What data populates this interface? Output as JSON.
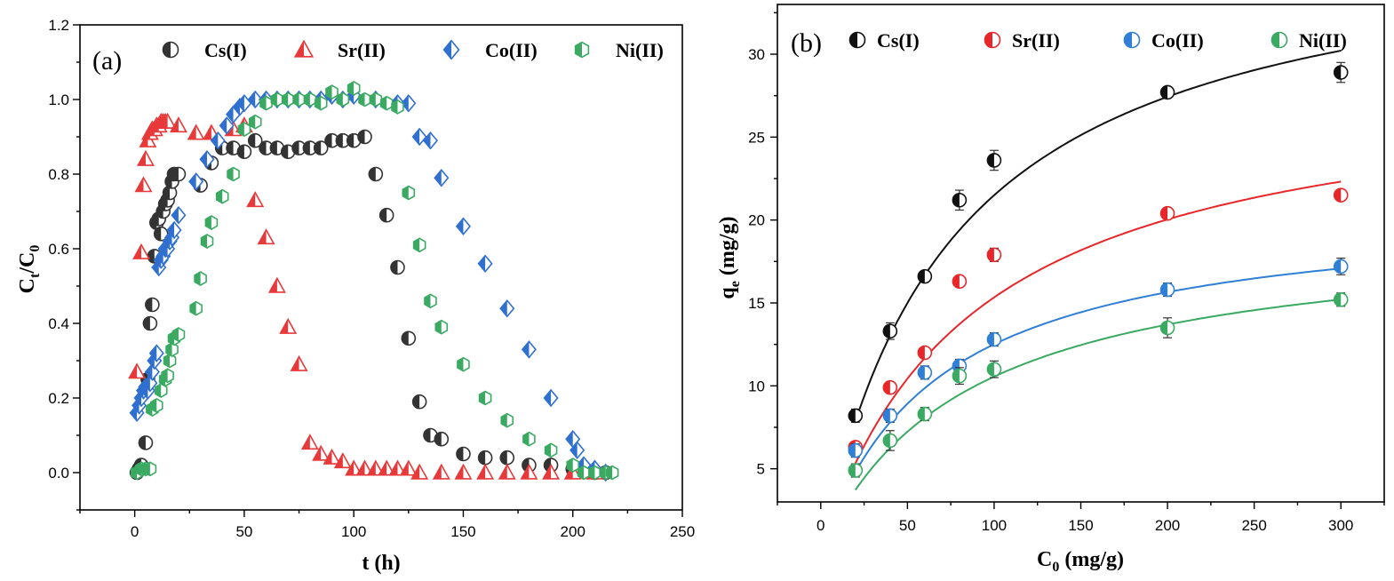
{
  "chart_data": [
    {
      "type": "scatter",
      "panel_label": "(a)",
      "xlabel": "t (h)",
      "ylabel_main": "C",
      "ylabel_sub_t": "t",
      "ylabel_slash": "/C",
      "ylabel_sub_0": "0",
      "xlim": [
        -25,
        250
      ],
      "ylim": [
        -0.1,
        1.2
      ],
      "xticks": [
        0,
        50,
        100,
        150,
        200,
        250
      ],
      "xtick_labels": [
        "0",
        "50",
        "100",
        "150",
        "200",
        "250"
      ],
      "yticks": [
        0.0,
        0.2,
        0.4,
        0.6,
        0.8,
        1.0,
        1.2
      ],
      "ytick_labels": [
        "0.0",
        "0.2",
        "0.4",
        "0.6",
        "0.8",
        "1.0",
        "1.2"
      ],
      "legend_position": "top",
      "series": [
        {
          "name": "Cs(I)",
          "color": "#333333",
          "marker": "circle-half",
          "points": [
            [
              1,
              0.0
            ],
            [
              2,
              0.01
            ],
            [
              3,
              0.02
            ],
            [
              5,
              0.08
            ],
            [
              6,
              0.25
            ],
            [
              7,
              0.4
            ],
            [
              8,
              0.45
            ],
            [
              9,
              0.58
            ],
            [
              10,
              0.67
            ],
            [
              11,
              0.68
            ],
            [
              12,
              0.64
            ],
            [
              13,
              0.7
            ],
            [
              14,
              0.72
            ],
            [
              15,
              0.73
            ],
            [
              16,
              0.75
            ],
            [
              17,
              0.78
            ],
            [
              18,
              0.8
            ],
            [
              20,
              0.8
            ],
            [
              30,
              0.77
            ],
            [
              35,
              0.83
            ],
            [
              40,
              0.87
            ],
            [
              45,
              0.87
            ],
            [
              50,
              0.86
            ],
            [
              55,
              0.89
            ],
            [
              60,
              0.87
            ],
            [
              65,
              0.87
            ],
            [
              70,
              0.86
            ],
            [
              75,
              0.87
            ],
            [
              80,
              0.87
            ],
            [
              85,
              0.87
            ],
            [
              90,
              0.89
            ],
            [
              95,
              0.89
            ],
            [
              100,
              0.89
            ],
            [
              105,
              0.9
            ],
            [
              110,
              0.8
            ],
            [
              115,
              0.69
            ],
            [
              120,
              0.55
            ],
            [
              125,
              0.36
            ],
            [
              130,
              0.19
            ],
            [
              135,
              0.1
            ],
            [
              140,
              0.09
            ],
            [
              150,
              0.05
            ],
            [
              160,
              0.04
            ],
            [
              170,
              0.04
            ],
            [
              180,
              0.02
            ],
            [
              190,
              0.02
            ],
            [
              200,
              0.01
            ],
            [
              210,
              0.0
            ],
            [
              215,
              0.0
            ]
          ]
        },
        {
          "name": "Sr(II)",
          "color": "#e8393a",
          "marker": "triangle-half",
          "points": [
            [
              1,
              0.27
            ],
            [
              3,
              0.59
            ],
            [
              4,
              0.77
            ],
            [
              5,
              0.84
            ],
            [
              6,
              0.89
            ],
            [
              7,
              0.91
            ],
            [
              8,
              0.92
            ],
            [
              9,
              0.92
            ],
            [
              10,
              0.93
            ],
            [
              11,
              0.93
            ],
            [
              12,
              0.94
            ],
            [
              13,
              0.94
            ],
            [
              14,
              0.94
            ],
            [
              15,
              0.94
            ],
            [
              20,
              0.93
            ],
            [
              28,
              0.91
            ],
            [
              35,
              0.91
            ],
            [
              45,
              0.92
            ],
            [
              50,
              0.93
            ],
            [
              55,
              0.73
            ],
            [
              60,
              0.63
            ],
            [
              65,
              0.5
            ],
            [
              70,
              0.39
            ],
            [
              75,
              0.29
            ],
            [
              80,
              0.08
            ],
            [
              85,
              0.05
            ],
            [
              90,
              0.04
            ],
            [
              95,
              0.03
            ],
            [
              100,
              0.01
            ],
            [
              105,
              0.01
            ],
            [
              110,
              0.01
            ],
            [
              115,
              0.01
            ],
            [
              120,
              0.01
            ],
            [
              125,
              0.01
            ],
            [
              130,
              0.0
            ],
            [
              140,
              0.0
            ],
            [
              150,
              0.0
            ],
            [
              160,
              0.0
            ],
            [
              170,
              0.0
            ],
            [
              180,
              0.0
            ],
            [
              190,
              0.0
            ],
            [
              200,
              0.0
            ],
            [
              210,
              0.0
            ]
          ]
        },
        {
          "name": "Co(II)",
          "color": "#2f6fd0",
          "marker": "diamond-half",
          "points": [
            [
              1,
              0.16
            ],
            [
              2,
              0.18
            ],
            [
              3,
              0.2
            ],
            [
              4,
              0.22
            ],
            [
              5,
              0.23
            ],
            [
              6,
              0.22
            ],
            [
              7,
              0.24
            ],
            [
              8,
              0.27
            ],
            [
              9,
              0.3
            ],
            [
              10,
              0.32
            ],
            [
              11,
              0.55
            ],
            [
              12,
              0.57
            ],
            [
              13,
              0.58
            ],
            [
              14,
              0.6
            ],
            [
              15,
              0.6
            ],
            [
              16,
              0.62
            ],
            [
              17,
              0.63
            ],
            [
              18,
              0.65
            ],
            [
              20,
              0.69
            ],
            [
              28,
              0.78
            ],
            [
              33,
              0.84
            ],
            [
              38,
              0.89
            ],
            [
              42,
              0.93
            ],
            [
              45,
              0.96
            ],
            [
              48,
              0.98
            ],
            [
              50,
              0.99
            ],
            [
              55,
              1.0
            ],
            [
              60,
              1.0
            ],
            [
              65,
              1.0
            ],
            [
              70,
              1.0
            ],
            [
              75,
              1.0
            ],
            [
              80,
              1.0
            ],
            [
              85,
              1.0
            ],
            [
              90,
              1.01
            ],
            [
              95,
              1.0
            ],
            [
              100,
              1.01
            ],
            [
              110,
              1.0
            ],
            [
              120,
              0.99
            ],
            [
              125,
              0.99
            ],
            [
              130,
              0.9
            ],
            [
              135,
              0.89
            ],
            [
              140,
              0.79
            ],
            [
              150,
              0.66
            ],
            [
              160,
              0.56
            ],
            [
              170,
              0.44
            ],
            [
              180,
              0.33
            ],
            [
              190,
              0.2
            ],
            [
              200,
              0.09
            ],
            [
              202,
              0.06
            ],
            [
              205,
              0.02
            ],
            [
              210,
              0.01
            ],
            [
              215,
              0.0
            ]
          ]
        },
        {
          "name": "Ni(II)",
          "color": "#3aaa62",
          "marker": "hexagon-half",
          "points": [
            [
              1,
              0.0
            ],
            [
              3,
              0.01
            ],
            [
              5,
              0.01
            ],
            [
              7,
              0.01
            ],
            [
              8,
              0.17
            ],
            [
              10,
              0.18
            ],
            [
              12,
              0.22
            ],
            [
              14,
              0.25
            ],
            [
              15,
              0.26
            ],
            [
              16,
              0.3
            ],
            [
              17,
              0.33
            ],
            [
              18,
              0.36
            ],
            [
              20,
              0.37
            ],
            [
              28,
              0.44
            ],
            [
              30,
              0.52
            ],
            [
              33,
              0.62
            ],
            [
              35,
              0.67
            ],
            [
              40,
              0.74
            ],
            [
              45,
              0.8
            ],
            [
              50,
              0.92
            ],
            [
              55,
              0.94
            ],
            [
              60,
              0.99
            ],
            [
              65,
              1.0
            ],
            [
              70,
              1.0
            ],
            [
              75,
              1.0
            ],
            [
              80,
              1.0
            ],
            [
              85,
              0.99
            ],
            [
              90,
              1.02
            ],
            [
              95,
              1.0
            ],
            [
              100,
              1.03
            ],
            [
              105,
              1.0
            ],
            [
              110,
              1.0
            ],
            [
              115,
              0.99
            ],
            [
              120,
              0.98
            ],
            [
              125,
              0.75
            ],
            [
              130,
              0.61
            ],
            [
              135,
              0.46
            ],
            [
              140,
              0.39
            ],
            [
              150,
              0.29
            ],
            [
              160,
              0.2
            ],
            [
              170,
              0.14
            ],
            [
              180,
              0.09
            ],
            [
              190,
              0.06
            ],
            [
              200,
              0.02
            ],
            [
              205,
              0.0
            ],
            [
              210,
              0.0
            ],
            [
              215,
              0.0
            ],
            [
              218,
              0.0
            ]
          ]
        }
      ]
    },
    {
      "type": "scatter",
      "panel_label": "(b)",
      "xlabel_main": "C",
      "xlabel_sub": "0",
      "xlabel_unit": " (mg/g)",
      "ylabel_main": "q",
      "ylabel_sub": "e",
      "ylabel_unit": " (mg/g)",
      "xlim": [
        -25,
        325
      ],
      "ylim": [
        3,
        33
      ],
      "xticks": [
        0,
        50,
        100,
        150,
        200,
        250,
        300
      ],
      "xtick_labels": [
        "0",
        "50",
        "100",
        "150",
        "200",
        "250",
        "300"
      ],
      "yticks": [
        5,
        10,
        15,
        20,
        25,
        30
      ],
      "ytick_labels": [
        "5",
        "10",
        "15",
        "20",
        "25",
        "30"
      ],
      "legend_position": "top",
      "series": [
        {
          "name": "Cs(I)",
          "color": "#111111",
          "marker": "circle-half",
          "x": [
            20,
            40,
            60,
            80,
            100,
            200,
            300
          ],
          "y": [
            8.2,
            13.3,
            16.6,
            21.2,
            23.6,
            27.7,
            28.9
          ],
          "err": [
            0.4,
            0.5,
            0.3,
            0.6,
            0.6,
            0.3,
            0.6
          ],
          "fit": {
            "qmax": 37.9,
            "k": 0.0131
          }
        },
        {
          "name": "Sr(II)",
          "color": "#e8262a",
          "marker": "circle-half",
          "x": [
            20,
            40,
            60,
            80,
            100,
            200,
            300
          ],
          "y": [
            6.3,
            9.9,
            12.0,
            16.3,
            17.9,
            20.4,
            21.5
          ],
          "err": [
            0.3,
            0.3,
            0.3,
            0.3,
            0.4,
            0.3,
            0.3
          ],
          "fit": {
            "qmax": 28.9,
            "k": 0.0113
          }
        },
        {
          "name": "Co(II)",
          "color": "#2f7fd6",
          "marker": "circle-half",
          "x": [
            20,
            40,
            60,
            80,
            100,
            200,
            300
          ],
          "y": [
            6.1,
            8.2,
            10.8,
            11.2,
            12.8,
            15.8,
            17.2
          ],
          "err": [
            0.4,
            0.4,
            0.4,
            0.4,
            0.4,
            0.4,
            0.5
          ],
          "fit": {
            "qmax": 20.9,
            "k": 0.0149
          }
        },
        {
          "name": "Ni(II)",
          "color": "#3aaa62",
          "marker": "circle-half",
          "x": [
            20,
            40,
            60,
            80,
            100,
            200,
            300
          ],
          "y": [
            4.9,
            6.7,
            8.3,
            10.6,
            11.0,
            13.5,
            15.2
          ],
          "err": [
            0.4,
            0.6,
            0.4,
            0.5,
            0.5,
            0.6,
            0.4
          ],
          "fit": {
            "qmax": 19.5,
            "k": 0.0118
          }
        }
      ]
    }
  ]
}
